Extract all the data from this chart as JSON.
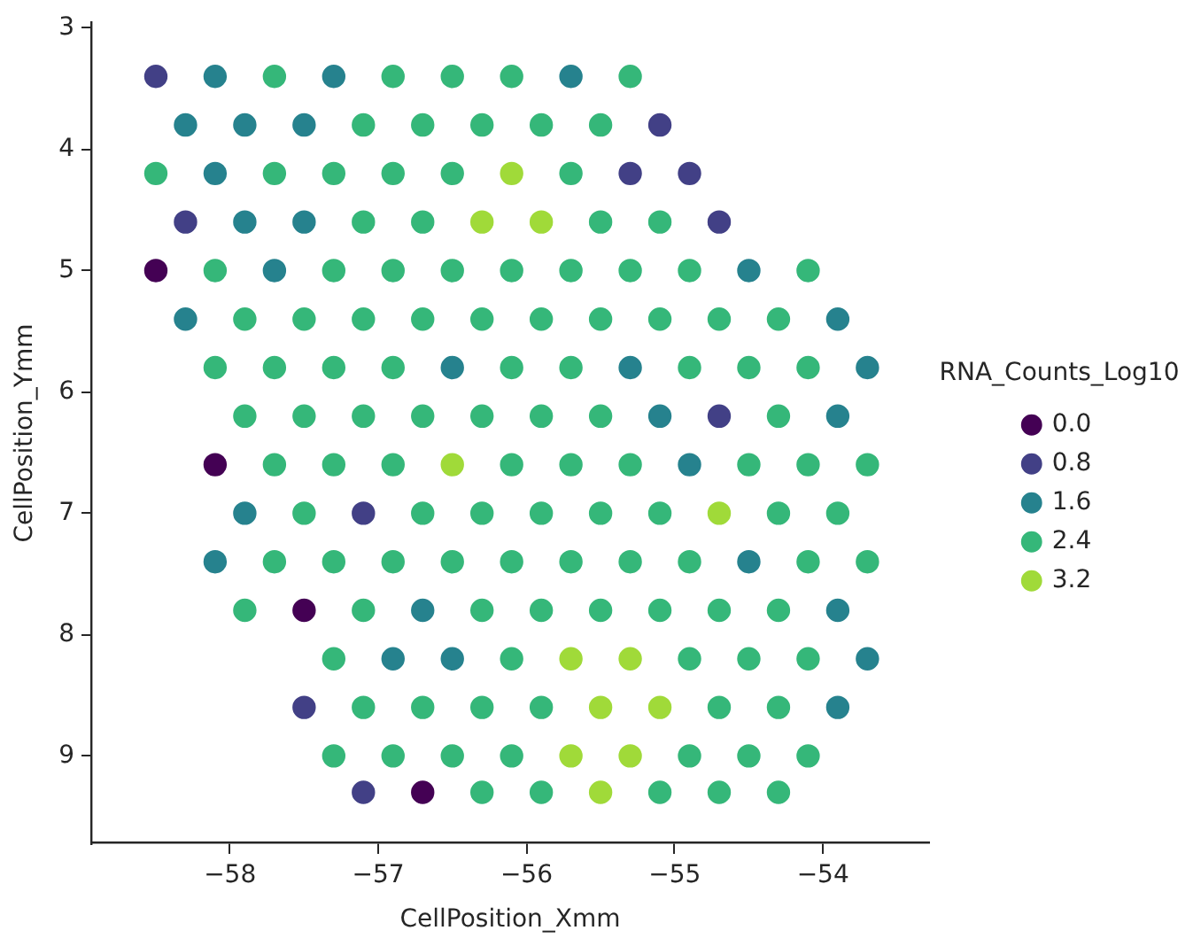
{
  "chart_data": {
    "type": "scatter",
    "xlabel": "CellPosition_Xmm",
    "ylabel": "CellPosition_Ymm",
    "legend_title": "RNA_Counts_Log10",
    "legend": "right",
    "grid": false,
    "marker": "circle",
    "xlim": [
      -58.93,
      -53.29
    ],
    "xticks": [
      {
        "value": -58,
        "label": "−58"
      },
      {
        "value": -57,
        "label": "−57"
      },
      {
        "value": -56,
        "label": "−56"
      },
      {
        "value": -55,
        "label": "−55"
      },
      {
        "value": -54,
        "label": "−54"
      }
    ],
    "ylim": [
      9.72,
      2.96
    ],
    "yticks": [
      3,
      4,
      5,
      6,
      7,
      8,
      9
    ],
    "series": [
      {
        "name": "0.0",
        "color": "#440154",
        "x": [
          -58.5,
          -58.1,
          -57.5,
          -56.7
        ],
        "values": [
          5.0,
          6.6,
          7.8,
          9.3
        ]
      },
      {
        "name": "0.8",
        "color": "#424086",
        "x": [
          -58.5,
          -55.1,
          -55.3,
          -54.9,
          -58.3,
          -54.7,
          -54.7,
          -57.1,
          -57.5,
          -57.1
        ],
        "values": [
          3.4,
          3.8,
          4.2,
          4.2,
          4.6,
          4.6,
          6.2,
          7.0,
          8.6,
          9.3
        ]
      },
      {
        "name": "1.6",
        "color": "#26828e",
        "x": [
          -58.1,
          -57.3,
          -55.7,
          -58.3,
          -57.9,
          -57.5,
          -58.1,
          -57.9,
          -57.5,
          -57.7,
          -54.5,
          -58.3,
          -53.9,
          -56.5,
          -55.3,
          -53.7,
          -55.1,
          -53.9,
          -54.9,
          -57.9,
          -58.1,
          -54.5,
          -56.7,
          -53.9,
          -56.9,
          -56.5,
          -53.7,
          -53.9
        ],
        "values": [
          3.4,
          3.4,
          3.4,
          3.8,
          3.8,
          3.8,
          4.2,
          4.6,
          4.6,
          5.0,
          5.0,
          5.4,
          5.4,
          5.8,
          5.8,
          5.8,
          6.2,
          6.2,
          6.6,
          7.0,
          7.4,
          7.4,
          7.8,
          7.8,
          8.2,
          8.2,
          8.2,
          8.6
        ]
      },
      {
        "name": "2.4",
        "color": "#35b779",
        "x": [
          -57.7,
          -56.9,
          -56.5,
          -56.1,
          -55.3,
          -57.1,
          -56.7,
          -56.3,
          -55.9,
          -55.5,
          -58.5,
          -57.7,
          -57.3,
          -56.9,
          -56.5,
          -55.7,
          -57.1,
          -56.7,
          -55.5,
          -55.1,
          -58.1,
          -57.3,
          -56.9,
          -56.5,
          -56.1,
          -55.7,
          -55.3,
          -54.9,
          -54.1,
          -57.9,
          -57.5,
          -57.1,
          -56.7,
          -56.3,
          -55.9,
          -55.5,
          -55.1,
          -54.7,
          -54.3,
          -58.1,
          -57.7,
          -57.3,
          -56.9,
          -56.1,
          -55.7,
          -54.9,
          -54.5,
          -54.1,
          -57.9,
          -57.5,
          -57.1,
          -56.7,
          -56.3,
          -55.9,
          -55.5,
          -54.3,
          -57.7,
          -57.3,
          -56.9,
          -56.1,
          -55.7,
          -55.3,
          -54.5,
          -54.1,
          -53.7,
          -57.5,
          -56.7,
          -56.3,
          -55.9,
          -55.5,
          -55.1,
          -54.3,
          -53.9,
          -57.7,
          -57.3,
          -56.9,
          -56.5,
          -56.1,
          -55.7,
          -55.3,
          -54.9,
          -54.1,
          -53.7,
          -57.9,
          -57.1,
          -56.3,
          -55.9,
          -55.5,
          -55.1,
          -54.7,
          -54.3,
          -57.3,
          -56.1,
          -54.9,
          -54.5,
          -54.1,
          -57.1,
          -56.7,
          -56.3,
          -55.9,
          -54.7,
          -54.3,
          -57.3,
          -56.9,
          -56.5,
          -56.1,
          -54.9,
          -54.5,
          -54.1,
          -56.3,
          -55.9,
          -55.1,
          -54.7,
          -54.3
        ],
        "values": [
          3.4,
          3.4,
          3.4,
          3.4,
          3.4,
          3.8,
          3.8,
          3.8,
          3.8,
          3.8,
          4.2,
          4.2,
          4.2,
          4.2,
          4.2,
          4.2,
          4.6,
          4.6,
          4.6,
          4.6,
          5.0,
          5.0,
          5.0,
          5.0,
          5.0,
          5.0,
          5.0,
          5.0,
          5.0,
          5.4,
          5.4,
          5.4,
          5.4,
          5.4,
          5.4,
          5.4,
          5.4,
          5.4,
          5.4,
          5.8,
          5.8,
          5.8,
          5.8,
          5.8,
          5.8,
          5.8,
          5.8,
          5.8,
          6.2,
          6.2,
          6.2,
          6.2,
          6.2,
          6.2,
          6.2,
          6.2,
          6.6,
          6.6,
          6.6,
          6.6,
          6.6,
          6.6,
          6.6,
          6.6,
          6.6,
          7.0,
          7.0,
          7.0,
          7.0,
          7.0,
          7.0,
          7.0,
          7.0,
          7.4,
          7.4,
          7.4,
          7.4,
          7.4,
          7.4,
          7.4,
          7.4,
          7.4,
          7.4,
          7.8,
          7.8,
          7.8,
          7.8,
          7.8,
          7.8,
          7.8,
          7.8,
          8.2,
          8.2,
          8.2,
          8.2,
          8.2,
          8.6,
          8.6,
          8.6,
          8.6,
          8.6,
          8.6,
          9.0,
          9.0,
          9.0,
          9.0,
          9.0,
          9.0,
          9.0,
          9.3,
          9.3,
          9.3,
          9.3,
          9.3
        ]
      },
      {
        "name": "3.2",
        "color": "#a0da39",
        "x": [
          -56.1,
          -56.3,
          -55.9,
          -56.5,
          -54.7,
          -55.7,
          -55.3,
          -55.5,
          -55.1,
          -55.7,
          -55.3,
          -55.5
        ],
        "values": [
          4.2,
          4.6,
          4.6,
          6.6,
          7.0,
          8.2,
          8.2,
          8.6,
          8.6,
          9.0,
          9.0,
          9.3
        ]
      }
    ]
  }
}
